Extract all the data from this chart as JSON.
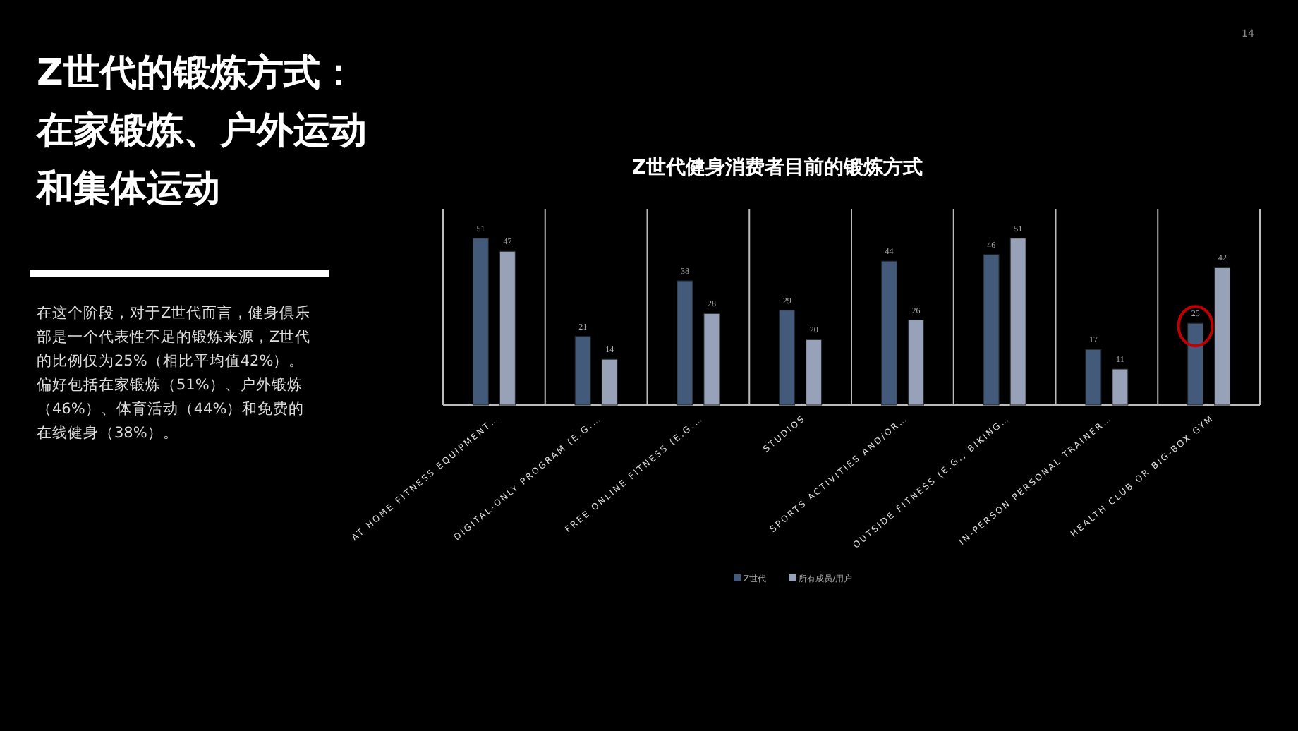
{
  "chart_data": {
    "type": "bar",
    "title": "Z世代健身消费者目前的锻炼方式",
    "categories": [
      "AT HOME FITNESS EQUIPMENT…",
      "DIGITAL-ONLY PROGRAM (E.G.…",
      "FREE ONLINE FITNESS (E.G.…",
      "STUDIOS",
      "SPORTS ACTIVITIES AND/OR…",
      "OUTSIDE FITNESS (E.G., BIKING…",
      "IN-PERSON PERSONAL TRAINER…",
      "HEALTH CLUB OR BIG-BOX GYM"
    ],
    "series": [
      {
        "name": "Z世代",
        "color": "#445a7a",
        "values": [
          51,
          21,
          38,
          29,
          44,
          46,
          17,
          25
        ]
      },
      {
        "name": "所有成员/用户",
        "color": "#97a2b8",
        "values": [
          47,
          14,
          28,
          20,
          26,
          51,
          11,
          42
        ]
      }
    ],
    "ylim": [
      0,
      60
    ],
    "data_labels": true,
    "grid": "x",
    "legend": "bottom",
    "annotations": [
      "Z世代的锻炼方式：在家锻炼、户外运动和集体运动",
      "在这个阶段，对于Z世代而言，健身俱乐部是一个代表性不足的锻炼来源，Z世代的比例仅为25%（相比平均值42%）。偏好包括在家锻炼（51%）、户外锻炼（46%）、体育活动（44%）和免费的在线健身（38%）。",
      "14"
    ]
  }
}
